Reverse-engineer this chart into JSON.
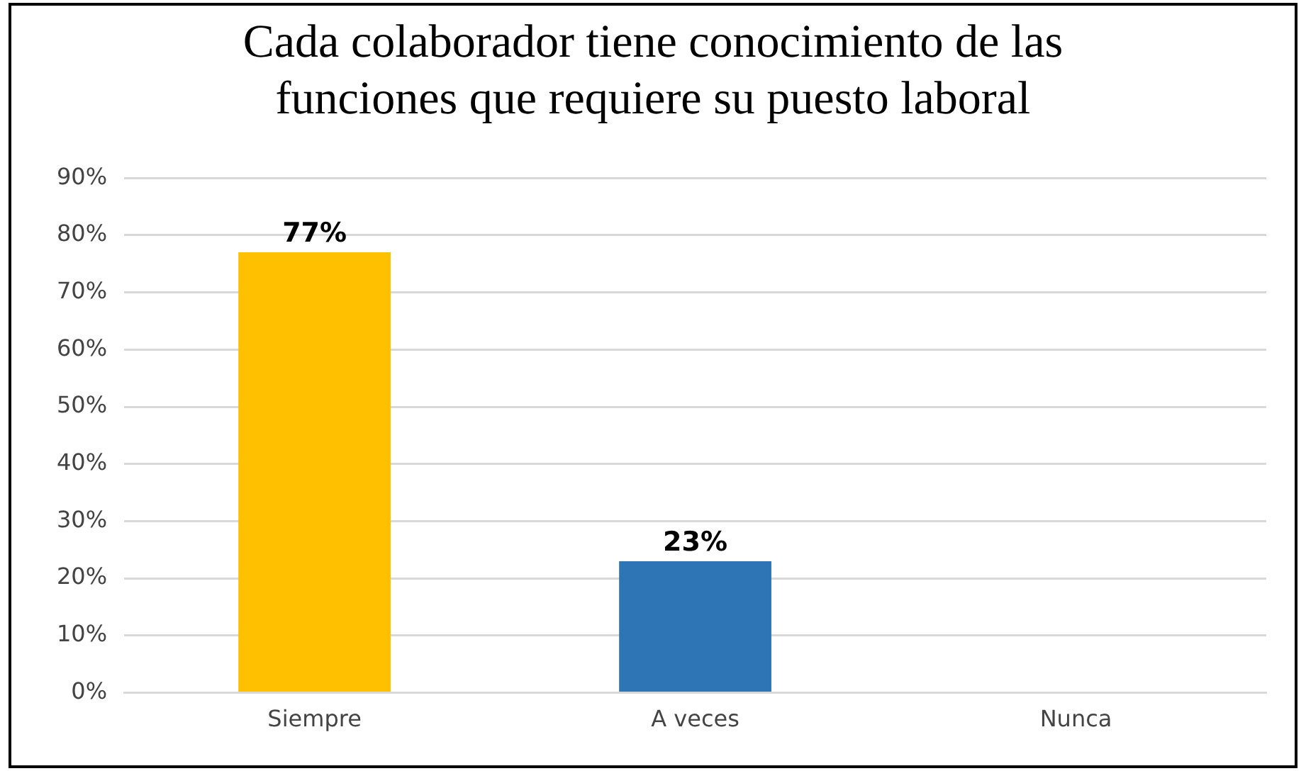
{
  "chart_data": {
    "type": "bar",
    "title": "Cada colaborador tiene conocimiento de las funciones que requiere su puesto laboral",
    "categories": [
      "Siempre",
      "A veces",
      "Nunca"
    ],
    "values": [
      77,
      23,
      0
    ],
    "colors": [
      "#ffc000",
      "#2e75b6",
      "#a5a5a5"
    ],
    "value_labels": [
      "77%",
      "23%",
      null
    ],
    "ylim": [
      0,
      90
    ],
    "yticks": [
      {
        "value": 0,
        "label": "0%"
      },
      {
        "value": 10,
        "label": "10%"
      },
      {
        "value": 20,
        "label": "20%"
      },
      {
        "value": 30,
        "label": "30%"
      },
      {
        "value": 40,
        "label": "40%"
      },
      {
        "value": 50,
        "label": "50%"
      },
      {
        "value": 60,
        "label": "60%"
      },
      {
        "value": 70,
        "label": "70%"
      },
      {
        "value": 80,
        "label": "80%"
      },
      {
        "value": 90,
        "label": "90%"
      }
    ],
    "grid": "y",
    "legend": false
  }
}
